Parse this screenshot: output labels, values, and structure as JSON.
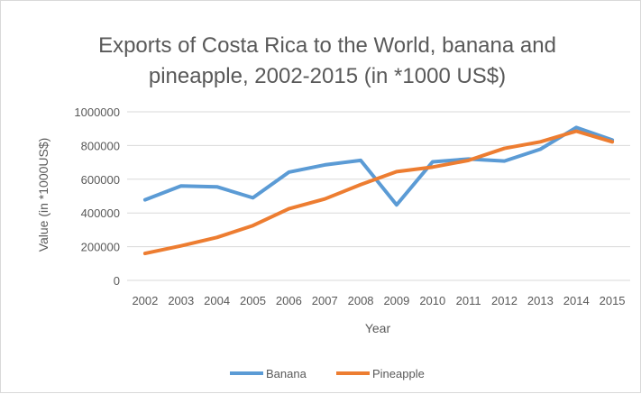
{
  "chart_data": {
    "type": "line",
    "title_line1": "Exports of Costa Rica to the World, banana and",
    "title_line2": "pineapple, 2002-2015 (in *1000 US$)",
    "xlabel": "Year",
    "ylabel": "Value (in *1000US$)",
    "categories": [
      "2002",
      "2003",
      "2004",
      "2005",
      "2006",
      "2007",
      "2008",
      "2009",
      "2010",
      "2011",
      "2012",
      "2013",
      "2014",
      "2015"
    ],
    "y_ticks": [
      "0",
      "200000",
      "400000",
      "600000",
      "800000",
      "1000000"
    ],
    "ylim": [
      0,
      1000000
    ],
    "grid": true,
    "legend_position": "bottom",
    "series": [
      {
        "name": "Banana",
        "color": "#5b9bd5",
        "values": [
          478000,
          560000,
          555000,
          490000,
          642000,
          685000,
          712000,
          448000,
          703000,
          720000,
          708000,
          778000,
          907000,
          833000
        ]
      },
      {
        "name": "Pineapple",
        "color": "#ed7d31",
        "values": [
          160000,
          205000,
          255000,
          325000,
          425000,
          483000,
          568000,
          645000,
          672000,
          712000,
          783000,
          822000,
          885000,
          822000
        ]
      }
    ]
  }
}
